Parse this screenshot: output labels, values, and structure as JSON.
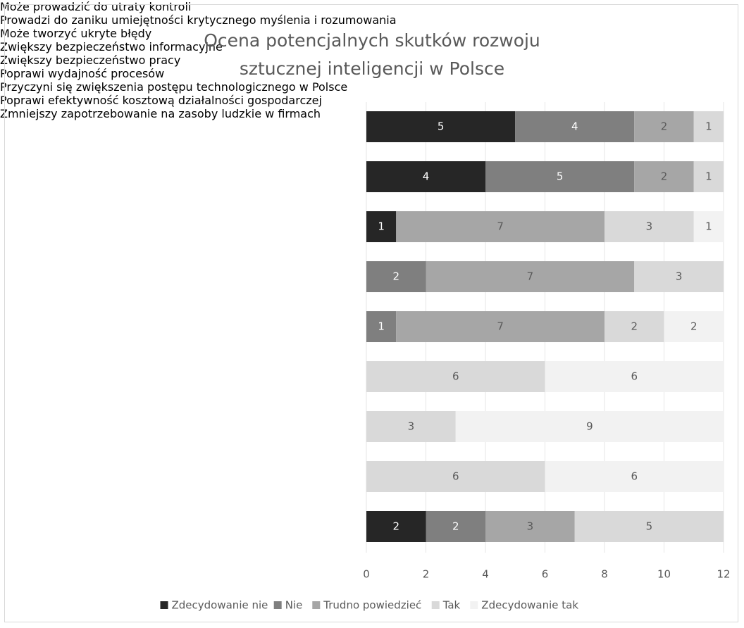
{
  "chart_data": {
    "type": "stacked-barh",
    "title": "Ocena potencjalnych skutków rozwoju sztucznej inteligencji w Polsce",
    "categories": [
      "Może prowadzić do utraty kontroli",
      "Prowadzi do zaniku umiejętności krytycznego myślenia i rozumowania",
      "Może tworzyć ukryte błędy",
      "Zwiększy bezpieczeństwo informacyjne",
      "Zwiększy bezpieczeństwo pracy",
      "Poprawi wydajność procesów",
      "Przyczyni się zwiększenia postępu technologicznego w Polsce",
      "Poprawi efektywność kosztową działalności gospodarczej",
      "Zmniejszy zapotrzebowanie na zasoby ludzkie w firmach"
    ],
    "series": [
      {
        "name": "Zdecydowanie nie",
        "color": "#262626",
        "values": [
          5,
          4,
          1,
          0,
          0,
          0,
          0,
          0,
          2
        ]
      },
      {
        "name": "Nie",
        "color": "#7f7f7f",
        "values": [
          4,
          5,
          0,
          2,
          1,
          0,
          0,
          0,
          2
        ]
      },
      {
        "name": "Trudno powiedzieć",
        "color": "#a6a6a6",
        "values": [
          2,
          2,
          7,
          7,
          7,
          0,
          0,
          0,
          3
        ]
      },
      {
        "name": "Tak",
        "color": "#d9d9d9",
        "values": [
          1,
          1,
          3,
          3,
          2,
          6,
          3,
          6,
          5
        ]
      },
      {
        "name": "Zdecydowanie tak",
        "color": "#f2f2f2",
        "values": [
          0,
          0,
          1,
          0,
          2,
          6,
          9,
          6,
          0
        ]
      }
    ],
    "xlim": [
      0,
      12
    ],
    "xticks": [
      0,
      2,
      4,
      6,
      8,
      10,
      12
    ],
    "grid": true
  }
}
